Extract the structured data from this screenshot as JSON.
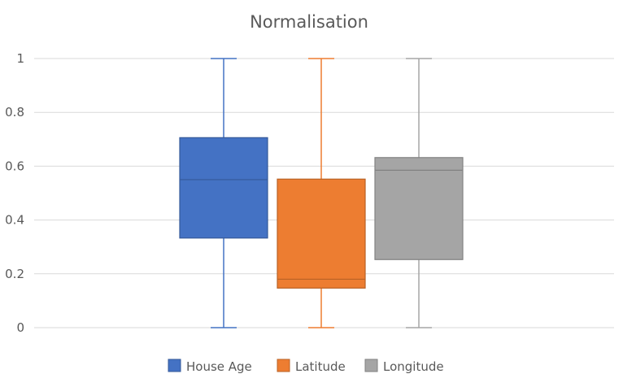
{
  "chart_data": {
    "type": "box",
    "title": "Normalisation",
    "xlabel": "",
    "ylabel": "",
    "ylim": [
      0,
      1
    ],
    "yticks": [
      "0",
      "0.2",
      "0.4",
      "0.6",
      "0.8",
      "1"
    ],
    "grid": true,
    "legend_position": "bottom",
    "series": [
      {
        "name": "House Age",
        "color": "#4472C4",
        "min": 0,
        "q1": 0.333,
        "median": 0.55,
        "q3": 0.706,
        "max": 1
      },
      {
        "name": "Latitude",
        "color": "#ED7D31",
        "min": 0,
        "q1": 0.147,
        "median": 0.18,
        "q3": 0.552,
        "max": 1
      },
      {
        "name": "Longitude",
        "color": "#A5A5A5",
        "min": 0,
        "q1": 0.253,
        "median": 0.585,
        "q3": 0.632,
        "max": 1
      }
    ]
  }
}
